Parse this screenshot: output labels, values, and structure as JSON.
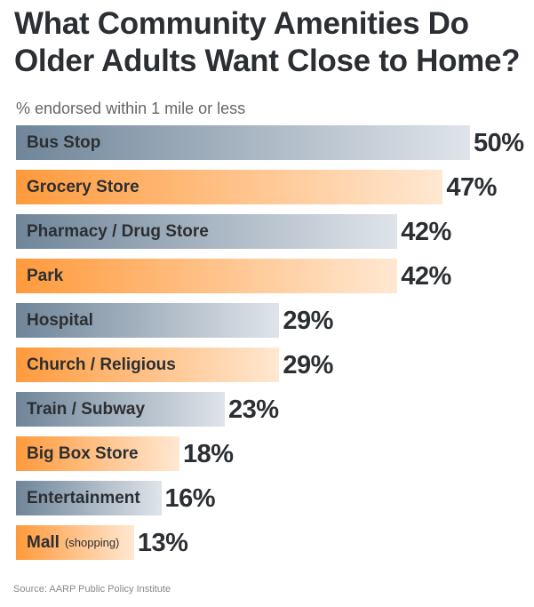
{
  "chart_data": {
    "type": "bar",
    "orientation": "horizontal",
    "title": "What Community Amenities Do Older Adults Want Close to Home?",
    "subtitle": "% endorsed within 1 mile or less",
    "categories": [
      "Bus Stop",
      "Grocery Store",
      "Pharmacy / Drug Store",
      "Park",
      "Hospital",
      "Church / Religious",
      "Train / Subway",
      "Big Box Store",
      "Entertainment",
      "Mall"
    ],
    "category_notes": [
      "",
      "",
      "",
      "",
      "",
      "",
      "",
      "",
      "",
      "(shopping)"
    ],
    "values": [
      50,
      47,
      42,
      42,
      29,
      29,
      23,
      18,
      16,
      13
    ],
    "value_labels": [
      "50%",
      "47%",
      "42%",
      "42%",
      "29%",
      "29%",
      "23%",
      "18%",
      "16%",
      "13%"
    ],
    "bar_colors": [
      "grey",
      "orange",
      "grey",
      "orange",
      "grey",
      "orange",
      "grey",
      "orange",
      "grey",
      "orange"
    ],
    "colors": {
      "grey_start": "#6f8599",
      "grey_end": "#dfe4ea",
      "orange_start": "#ff9a3c",
      "orange_end": "#ffe8d2",
      "text": "#2b2f33"
    },
    "grid": false,
    "xlim": [
      0,
      50
    ],
    "source": "Source:  AARP Public Policy Institute"
  }
}
